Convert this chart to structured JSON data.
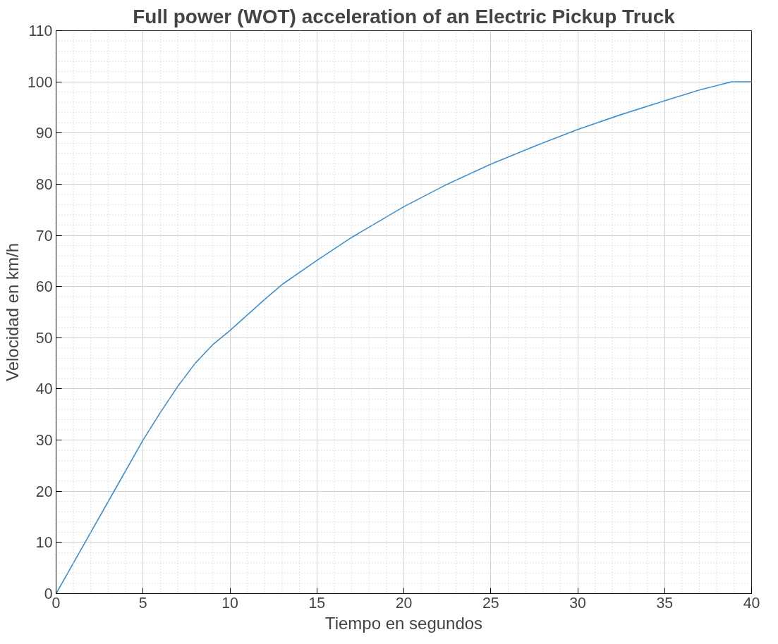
{
  "chart_data": {
    "type": "line",
    "title": "Full power (WOT) acceleration of an Electric Pickup Truck",
    "xlabel": "Tiempo en segundos",
    "ylabel": "Velocidad en km/h",
    "x": [
      0,
      3,
      5,
      6,
      7,
      8,
      9,
      10,
      12,
      13,
      15,
      17,
      20,
      22.5,
      25,
      27.5,
      30,
      32.5,
      35,
      37,
      38.85,
      40
    ],
    "series": [
      {
        "color": "#3d8fd1",
        "values": [
          0,
          18,
          30,
          35.4,
          40.5,
          45,
          48.6,
          51.4,
          57.5,
          60.4,
          65.1,
          69.6,
          75.6,
          80,
          83.9,
          87.4,
          90.7,
          93.6,
          96.3,
          98.4,
          100,
          100
        ]
      }
    ],
    "xlim": [
      0,
      40
    ],
    "ylim": [
      0,
      110
    ],
    "xticks": [
      0,
      5,
      10,
      15,
      20,
      25,
      30,
      35,
      40
    ],
    "yticks": [
      0,
      10,
      20,
      30,
      40,
      50,
      60,
      70,
      80,
      90,
      100,
      110
    ],
    "grid": true,
    "line_style": "solid",
    "marker": "none"
  }
}
